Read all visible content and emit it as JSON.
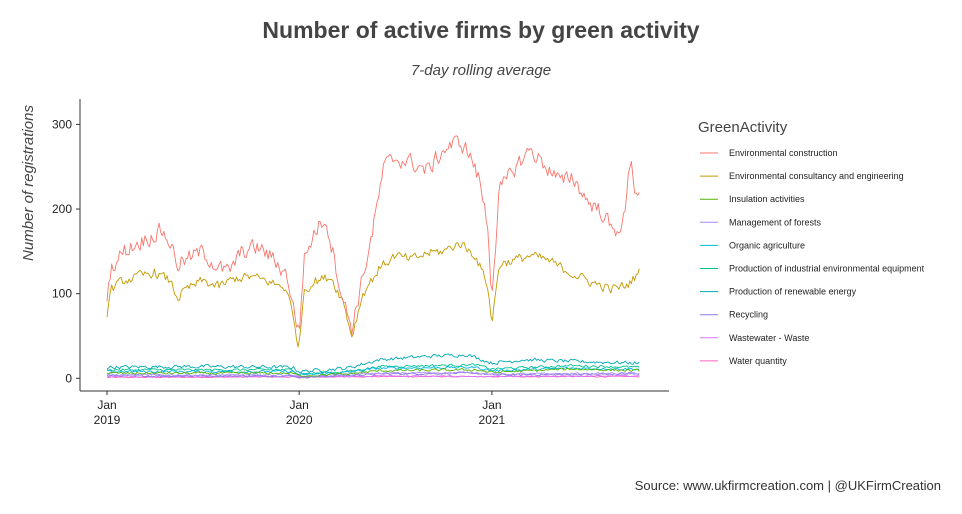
{
  "chart_data": {
    "type": "line",
    "title": "Number of active firms by green activity",
    "subtitle": "7-day rolling average",
    "xlabel": "",
    "ylabel": "Number of registrations",
    "caption": "Source: www.ukfirmcreation.com | @UKFirmCreation",
    "legend_title": "GreenActivity",
    "legend_position": "right",
    "grid": false,
    "x_range": [
      "2019-01-01",
      "2021-10-15"
    ],
    "ylim": [
      -15,
      330
    ],
    "y_ticks": [
      0,
      100,
      200,
      300
    ],
    "x_ticks": [
      {
        "date": "2019-01-01",
        "line1": "Jan",
        "line2": "2019"
      },
      {
        "date": "2020-01-01",
        "line1": "Jan",
        "line2": "2020"
      },
      {
        "date": "2021-01-01",
        "line1": "Jan",
        "line2": "2021"
      }
    ],
    "series": [
      {
        "name": "Environmental construction",
        "color": "#F8766D",
        "noise": 14,
        "points": [
          [
            "2019-01-01",
            100
          ],
          [
            "2019-01-08",
            130
          ],
          [
            "2019-02-01",
            150
          ],
          [
            "2019-03-01",
            160
          ],
          [
            "2019-04-01",
            170
          ],
          [
            "2019-04-15",
            175
          ],
          [
            "2019-05-01",
            160
          ],
          [
            "2019-05-15",
            135
          ],
          [
            "2019-06-01",
            140
          ],
          [
            "2019-07-01",
            150
          ],
          [
            "2019-08-01",
            130
          ],
          [
            "2019-08-20",
            125
          ],
          [
            "2019-09-15",
            150
          ],
          [
            "2019-10-15",
            155
          ],
          [
            "2019-11-15",
            140
          ],
          [
            "2019-12-10",
            120
          ],
          [
            "2019-12-25",
            70
          ],
          [
            "2020-01-01",
            55
          ],
          [
            "2020-01-10",
            140
          ],
          [
            "2020-02-01",
            175
          ],
          [
            "2020-02-20",
            190
          ],
          [
            "2020-03-05",
            150
          ],
          [
            "2020-03-25",
            90
          ],
          [
            "2020-04-10",
            60
          ],
          [
            "2020-05-01",
            120
          ],
          [
            "2020-05-20",
            175
          ],
          [
            "2020-06-10",
            250
          ],
          [
            "2020-07-01",
            260
          ],
          [
            "2020-08-01",
            255
          ],
          [
            "2020-09-01",
            245
          ],
          [
            "2020-10-01",
            270
          ],
          [
            "2020-11-01",
            280
          ],
          [
            "2020-11-20",
            265
          ],
          [
            "2020-12-10",
            230
          ],
          [
            "2020-12-24",
            180
          ],
          [
            "2021-01-01",
            100
          ],
          [
            "2021-01-15",
            220
          ],
          [
            "2021-02-15",
            250
          ],
          [
            "2021-03-15",
            270
          ],
          [
            "2021-04-15",
            250
          ],
          [
            "2021-05-15",
            230
          ],
          [
            "2021-06-01",
            240
          ],
          [
            "2021-07-01",
            210
          ],
          [
            "2021-08-01",
            195
          ],
          [
            "2021-08-20",
            170
          ],
          [
            "2021-09-10",
            190
          ],
          [
            "2021-09-22",
            265
          ],
          [
            "2021-10-01",
            215
          ],
          [
            "2021-10-08",
            225
          ]
        ]
      },
      {
        "name": "Environmental consultancy and engineering",
        "color": "#C49A00",
        "noise": 8,
        "points": [
          [
            "2019-01-01",
            75
          ],
          [
            "2019-01-08",
            105
          ],
          [
            "2019-02-01",
            115
          ],
          [
            "2019-03-01",
            120
          ],
          [
            "2019-04-01",
            125
          ],
          [
            "2019-05-01",
            115
          ],
          [
            "2019-05-15",
            95
          ],
          [
            "2019-06-01",
            105
          ],
          [
            "2019-07-01",
            115
          ],
          [
            "2019-08-01",
            108
          ],
          [
            "2019-09-01",
            118
          ],
          [
            "2019-10-01",
            120
          ],
          [
            "2019-11-01",
            115
          ],
          [
            "2019-12-10",
            105
          ],
          [
            "2019-12-25",
            55
          ],
          [
            "2020-01-01",
            38
          ],
          [
            "2020-01-10",
            105
          ],
          [
            "2020-02-01",
            115
          ],
          [
            "2020-03-01",
            120
          ],
          [
            "2020-03-25",
            90
          ],
          [
            "2020-04-10",
            50
          ],
          [
            "2020-05-01",
            100
          ],
          [
            "2020-06-01",
            130
          ],
          [
            "2020-07-01",
            145
          ],
          [
            "2020-08-01",
            140
          ],
          [
            "2020-09-01",
            148
          ],
          [
            "2020-10-01",
            150
          ],
          [
            "2020-11-01",
            160
          ],
          [
            "2020-12-01",
            145
          ],
          [
            "2020-12-24",
            110
          ],
          [
            "2021-01-01",
            65
          ],
          [
            "2021-01-15",
            135
          ],
          [
            "2021-02-15",
            140
          ],
          [
            "2021-03-15",
            145
          ],
          [
            "2021-04-15",
            140
          ],
          [
            "2021-05-15",
            130
          ],
          [
            "2021-06-15",
            120
          ],
          [
            "2021-07-15",
            112
          ],
          [
            "2021-08-15",
            105
          ],
          [
            "2021-09-15",
            110
          ],
          [
            "2021-10-08",
            125
          ]
        ]
      },
      {
        "name": "Insulation activities",
        "color": "#53B400",
        "noise": 2,
        "points": [
          [
            "2019-01-01",
            6
          ],
          [
            "2019-12-20",
            6
          ],
          [
            "2020-01-01",
            3
          ],
          [
            "2020-04-01",
            5
          ],
          [
            "2020-06-01",
            9
          ],
          [
            "2020-12-01",
            10
          ],
          [
            "2021-01-01",
            7
          ],
          [
            "2021-06-01",
            11
          ],
          [
            "2021-10-08",
            9
          ]
        ]
      },
      {
        "name": "Management of forests",
        "color": "#A58AFF",
        "noise": 1.5,
        "points": [
          [
            "2019-01-01",
            4
          ],
          [
            "2019-12-20",
            4
          ],
          [
            "2020-01-01",
            2
          ],
          [
            "2020-06-01",
            6
          ],
          [
            "2020-12-01",
            7
          ],
          [
            "2021-01-01",
            5
          ],
          [
            "2021-10-08",
            6
          ]
        ]
      },
      {
        "name": "Organic agriculture",
        "color": "#00B6EB",
        "noise": 2,
        "points": [
          [
            "2019-01-01",
            8
          ],
          [
            "2019-12-20",
            8
          ],
          [
            "2020-01-01",
            4
          ],
          [
            "2020-04-01",
            7
          ],
          [
            "2020-06-01",
            12
          ],
          [
            "2020-12-01",
            13
          ],
          [
            "2021-01-01",
            9
          ],
          [
            "2021-06-01",
            12
          ],
          [
            "2021-10-08",
            11
          ]
        ]
      },
      {
        "name": "Production of industrial environmental equipment",
        "color": "#00C094",
        "noise": 2,
        "points": [
          [
            "2019-01-01",
            10
          ],
          [
            "2019-12-20",
            10
          ],
          [
            "2020-01-01",
            5
          ],
          [
            "2020-04-01",
            8
          ],
          [
            "2020-06-01",
            14
          ],
          [
            "2020-12-01",
            16
          ],
          [
            "2021-01-01",
            11
          ],
          [
            "2021-06-01",
            15
          ],
          [
            "2021-10-08",
            13
          ]
        ]
      },
      {
        "name": "Production of renewable energy",
        "color": "#00A9B4",
        "noise": 3,
        "points": [
          [
            "2019-01-01",
            13
          ],
          [
            "2019-06-01",
            14
          ],
          [
            "2019-12-20",
            13
          ],
          [
            "2020-01-01",
            8
          ],
          [
            "2020-04-01",
            12
          ],
          [
            "2020-06-01",
            22
          ],
          [
            "2020-09-01",
            26
          ],
          [
            "2020-11-15",
            28
          ],
          [
            "2021-01-01",
            18
          ],
          [
            "2021-03-01",
            22
          ],
          [
            "2021-06-01",
            20
          ],
          [
            "2021-10-08",
            18
          ]
        ]
      },
      {
        "name": "Recycling",
        "color": "#8E7CE0",
        "noise": 1.5,
        "points": [
          [
            "2019-01-01",
            3
          ],
          [
            "2019-12-20",
            3
          ],
          [
            "2020-01-01",
            1
          ],
          [
            "2020-06-01",
            5
          ],
          [
            "2020-12-01",
            6
          ],
          [
            "2021-01-01",
            4
          ],
          [
            "2021-10-08",
            5
          ]
        ]
      },
      {
        "name": "Wastewater - Waste",
        "color": "#D575FE",
        "noise": 1,
        "points": [
          [
            "2019-01-01",
            2
          ],
          [
            "2019-12-20",
            2
          ],
          [
            "2020-01-01",
            1
          ],
          [
            "2020-06-01",
            3
          ],
          [
            "2021-01-01",
            2
          ],
          [
            "2021-10-08",
            3
          ]
        ]
      },
      {
        "name": "Water quantity",
        "color": "#FF62BC",
        "noise": 0.8,
        "points": [
          [
            "2019-01-01",
            1
          ],
          [
            "2020-06-01",
            2
          ],
          [
            "2021-10-08",
            2
          ]
        ]
      }
    ]
  }
}
